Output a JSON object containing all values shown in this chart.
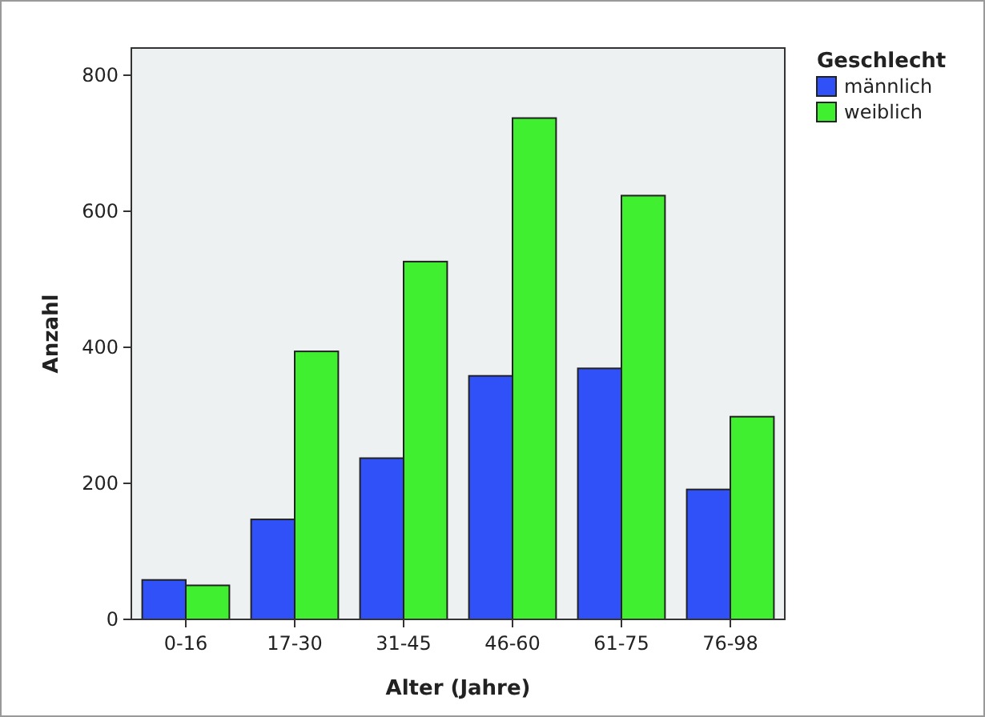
{
  "chart_data": {
    "type": "bar",
    "xlabel": "Alter (Jahre)",
    "ylabel": "Anzahl",
    "legend_title": "Geschlecht",
    "legend": "top right",
    "categories": [
      "0-16",
      "17-30",
      "31-45",
      "46-60",
      "61-75",
      "76-98"
    ],
    "series": [
      {
        "name": "männlich",
        "color": "#3050f8",
        "values": [
          58,
          147,
          237,
          358,
          369,
          191
        ]
      },
      {
        "name": "weiblich",
        "color": "#40f030",
        "values": [
          50,
          394,
          526,
          737,
          623,
          298
        ]
      }
    ],
    "ylim": [
      0,
      840
    ],
    "yticks": [
      0,
      200,
      400,
      600,
      800
    ],
    "grid": false
  }
}
